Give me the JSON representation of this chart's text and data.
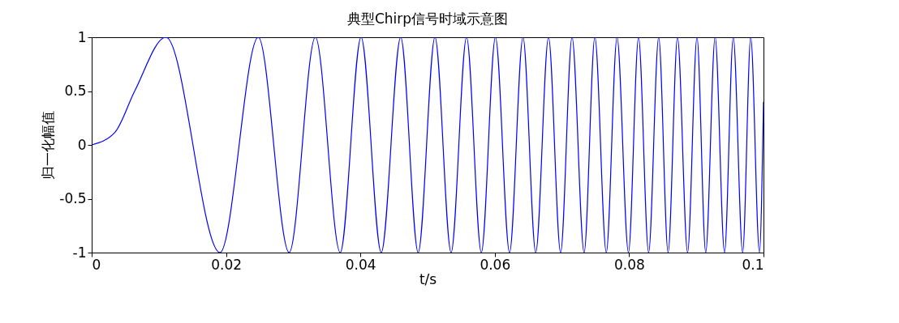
{
  "chart_data": {
    "type": "line",
    "title": "典型Chirp信号时域示意图",
    "xlabel": "t/s",
    "ylabel": "归一化幅值",
    "x": [
      0,
      0.0035,
      0.0064,
      0.01105,
      0.0191,
      0.0248,
      0.0294,
      0.0333,
      0.037,
      0.0401,
      0.0431,
      0.046,
      0.0486,
      0.0511,
      0.0535,
      0.0558,
      0.058,
      0.0601,
      0.0622,
      0.0642,
      0.0661,
      0.068,
      0.0698,
      0.0715,
      0.0733,
      0.0749,
      0.0766,
      0.0782,
      0.0799,
      0.0814,
      0.0829,
      0.0844,
      0.0858,
      0.0872,
      0.0887,
      0.0901,
      0.0914,
      0.0928,
      0.0942,
      0.0955,
      0.0969,
      0.0981,
      0.0994,
      0.1
    ],
    "series": [
      {
        "color": "#0000ff",
        "values": [
          0,
          0.12,
          0.5,
          1,
          -1,
          1,
          -1,
          1,
          -1,
          1,
          -1,
          1,
          -1,
          1,
          -1,
          1,
          -1,
          1,
          -1,
          1,
          -1,
          1,
          -1,
          1,
          -1,
          1,
          -1,
          1,
          -1,
          1,
          -1,
          1,
          -1,
          1,
          -1,
          1,
          -1,
          1,
          -1,
          1,
          -1,
          1,
          -1,
          0.4
        ]
      }
    ],
    "xlim": [
      0,
      0.1
    ],
    "ylim": [
      -1,
      1
    ],
    "xticks": [
      0,
      0.02,
      0.04,
      0.06,
      0.08,
      0.1
    ],
    "yticks": [
      -1,
      -0.5,
      0,
      0.5,
      1
    ],
    "grid": false,
    "marker": "none",
    "line_style": "solid"
  }
}
